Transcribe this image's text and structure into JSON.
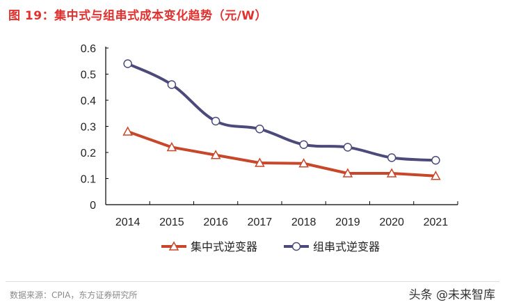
{
  "chart_data": {
    "type": "line",
    "title": "图 19：集中式与组串式成本变化趋势（元/W）",
    "categories": [
      "2014",
      "2015",
      "2016",
      "2017",
      "2018",
      "2019",
      "2020",
      "2021"
    ],
    "ylim": [
      0,
      0.6
    ],
    "yticks": [
      "0",
      "0.1",
      "0.2",
      "0.3",
      "0.4",
      "0.5",
      "0.6"
    ],
    "grid": false,
    "legend_position": "bottom",
    "series": [
      {
        "name": "集中式逆变器",
        "values": [
          0.28,
          0.22,
          0.19,
          0.16,
          0.158,
          0.12,
          0.12,
          0.11
        ],
        "color": "#c8472a",
        "marker": "triangle"
      },
      {
        "name": "组串式逆变器",
        "values": [
          0.54,
          0.46,
          0.32,
          0.29,
          0.23,
          0.22,
          0.18,
          0.17
        ],
        "color": "#4b4a7a",
        "marker": "circle"
      }
    ]
  },
  "footer": {
    "source": "数据来源：CPIA，东方证券研究所",
    "watermark": "头条 @未来智库"
  }
}
